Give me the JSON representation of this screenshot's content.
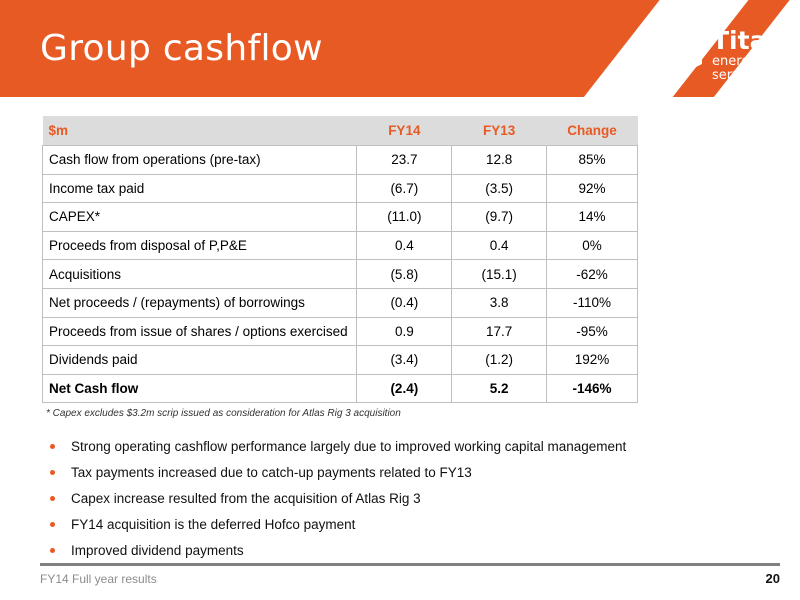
{
  "header": {
    "title": "Group cashflow",
    "accent_color": "#e85a24",
    "logo": {
      "icon": "titan-logo-icon",
      "name": "Titan",
      "sub_line1": "energy",
      "sub_line2": "services"
    }
  },
  "table": {
    "columns": [
      "$m",
      "FY14",
      "FY13",
      "Change"
    ],
    "rows": [
      [
        "Cash flow from operations (pre-tax)",
        "23.7",
        "12.8",
        "85%"
      ],
      [
        "Income tax paid",
        "(6.7)",
        "(3.5)",
        "92%"
      ],
      [
        "CAPEX*",
        "(11.0)",
        "(9.7)",
        "14%"
      ],
      [
        "Proceeds from disposal of P,P&E",
        "0.4",
        "0.4",
        "0%"
      ],
      [
        "Acquisitions",
        "(5.8)",
        "(15.1)",
        "-62%"
      ],
      [
        "Net proceeds / (repayments) of borrowings",
        "(0.4)",
        "3.8",
        "-110%"
      ],
      [
        "Proceeds from issue of shares / options exercised",
        "0.9",
        "17.7",
        "-95%"
      ],
      [
        "Dividends paid",
        "(3.4)",
        "(1.2)",
        "192%"
      ],
      [
        "Net Cash flow",
        "(2.4)",
        "5.2",
        "-146%"
      ]
    ],
    "footnote": "* Capex excludes $3.2m scrip issued as consideration for Atlas Rig 3 acquisition"
  },
  "bullets": [
    "Strong operating cashflow performance largely due to improved working capital management",
    "Tax payments increased due to catch-up payments related to FY13",
    "Capex increase resulted from the acquisition of Atlas Rig 3",
    "FY14 acquisition is the deferred Hofco payment",
    "Improved dividend payments"
  ],
  "footer": {
    "left": "FY14 Full year results",
    "page": "20"
  }
}
